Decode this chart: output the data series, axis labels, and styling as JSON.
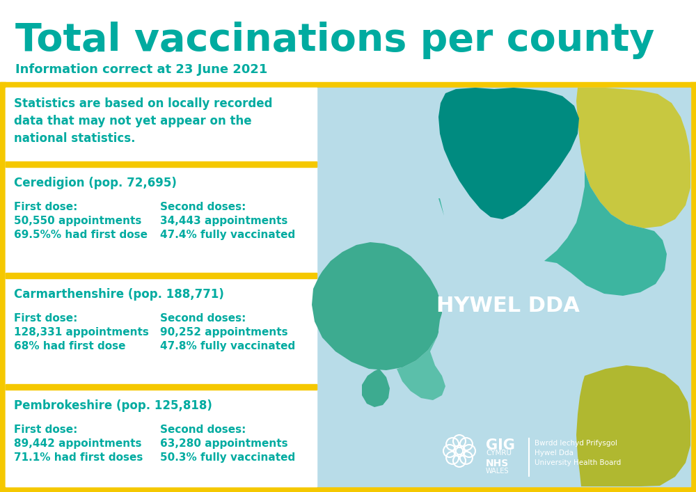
{
  "title": "Total vaccinations per county",
  "subtitle": "Information correct at 23 June 2021",
  "bg_color": "#ffffff",
  "title_color": "#00aba0",
  "subtitle_color": "#00aba0",
  "yellow_color": "#f5c800",
  "text_color": "#00aba0",
  "disclaimer": "Statistics are based on locally recorded\ndata that may not yet appear on the\nnational statistics.",
  "counties": [
    {
      "name": "Ceredigion (pop. 72,695)",
      "first_dose_label": "First dose:",
      "first_dose_line1": "50,550 appointments",
      "first_dose_line2": "69.5%% had first dose",
      "second_dose_label": "Second doses:",
      "second_dose_line1": "34,443 appointments",
      "second_dose_line2": "47.4% fully vaccinated"
    },
    {
      "name": "Carmarthenshire (pop. 188,771)",
      "first_dose_label": "First dose:",
      "first_dose_line1": "128,331 appointments",
      "first_dose_line2": "68% had first dose",
      "second_dose_label": "Second doses:",
      "second_dose_line1": "90,252 appointments",
      "second_dose_line2": "47.8% fully vaccinated"
    },
    {
      "name": "Pembrokeshire (pop. 125,818)",
      "first_dose_label": "First dose:",
      "first_dose_line1": "89,442 appointments",
      "first_dose_line2": "71.1% had first doses",
      "second_dose_label": "Second doses:",
      "second_dose_line1": "63,280 appointments",
      "second_dose_line2": "50.3% fully vaccinated"
    }
  ],
  "map_label": "HYWEL DDA",
  "map_label_color": "#ffffff",
  "sea_color": "#b8dce8",
  "ceredigion_color": "#008b80",
  "carmarthenshire_color": "#3db5a0",
  "pembrokeshire_color": "#3dab90",
  "yellow_land_color": "#c8c840",
  "yellow_land2_color": "#b0b830"
}
